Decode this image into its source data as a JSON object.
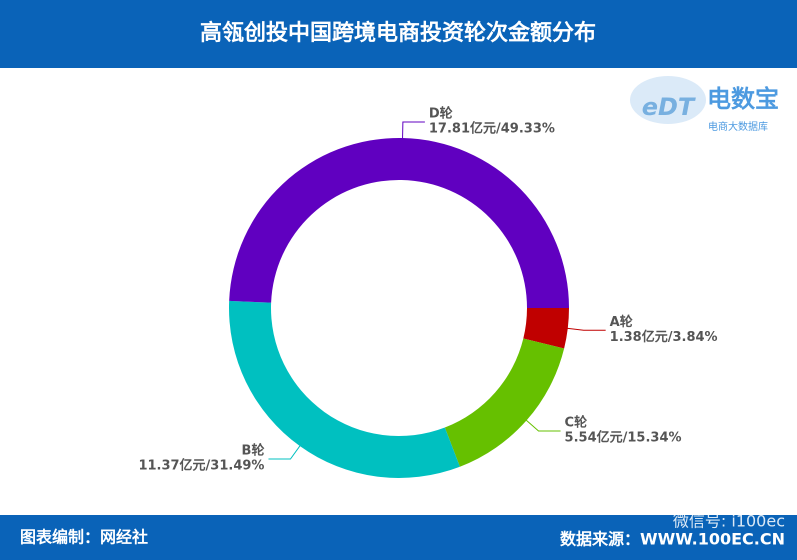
{
  "header": {
    "title": "高瓴创投中国跨境电商投资轮次金额分布"
  },
  "logo": {
    "mark": "eDT",
    "name": "电数宝",
    "subtitle": "电商大数据库"
  },
  "chart_data": {
    "type": "donut",
    "categories": [
      "A轮",
      "C轮",
      "B轮",
      "D轮"
    ],
    "values": [
      1.38,
      5.54,
      11.37,
      17.81
    ],
    "value_labels": [
      "1.38亿元/3.84%",
      "5.54亿元/15.34%",
      "11.37亿元/31.49%",
      "17.81亿元/49.33%"
    ],
    "colors": [
      "#c00000",
      "#66c000",
      "#00c0c0",
      "#6000c0"
    ]
  },
  "footer": {
    "left": "图表编制：网经社",
    "right": "数据来源：WWW.100EC.CN",
    "watermark": "微信号: i100ec"
  }
}
